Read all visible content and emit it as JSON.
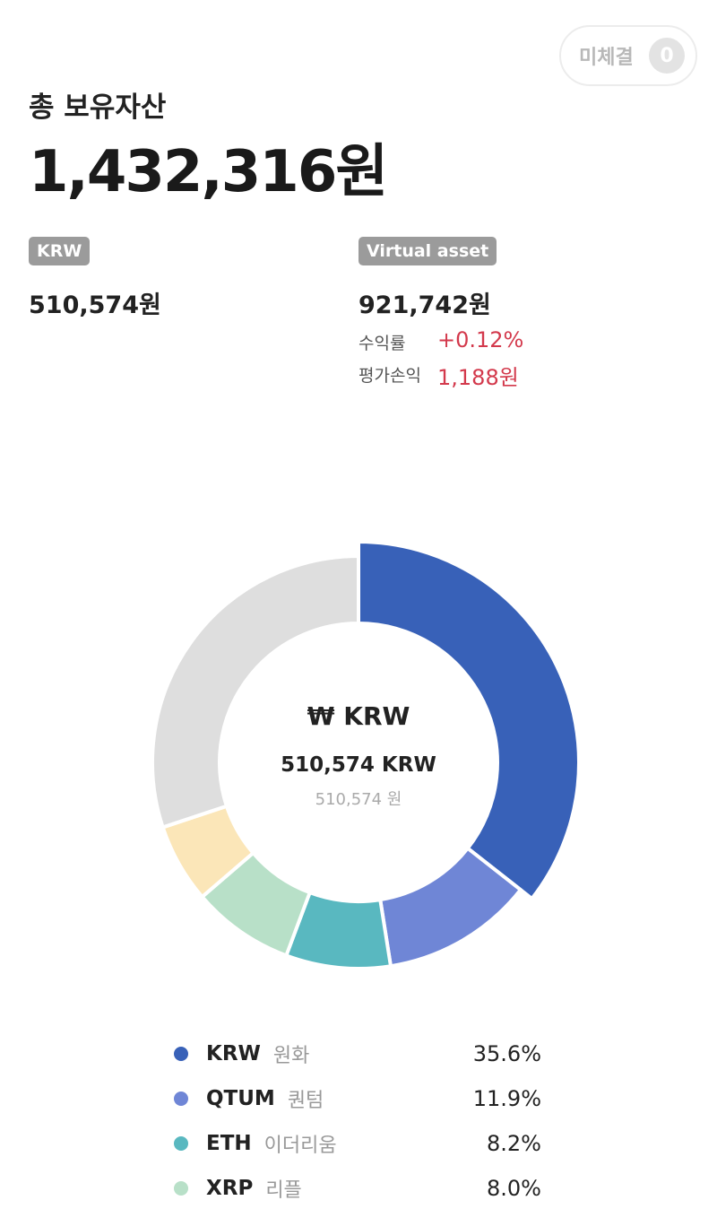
{
  "header": {
    "pending_label": "미체결",
    "pending_count": "0"
  },
  "summary": {
    "title": "총 보유자산",
    "total": "1,432,316원",
    "krw_badge": "KRW",
    "krw_value": "510,574원",
    "virtual_badge": "Virtual asset",
    "virtual_value": "921,742원",
    "return_label": "수익률",
    "return_value": "+0.12%",
    "pl_label": "평가손익",
    "pl_value": "1,188원"
  },
  "colors": {
    "positive": "#d3394c",
    "badge": "#9b9b9b"
  },
  "donut": {
    "center_title": "₩ KRW",
    "center_amount": "510,574 KRW",
    "center_won": "510,574 원",
    "selected_index": 0,
    "segments": [
      {
        "code": "KRW",
        "name": "원화",
        "percent": 35.6,
        "label": "35.6%",
        "color": "#3861b8"
      },
      {
        "code": "QTUM",
        "name": "퀀텀",
        "percent": 11.9,
        "label": "11.9%",
        "color": "#6f86d6"
      },
      {
        "code": "ETH",
        "name": "이더리움",
        "percent": 8.2,
        "label": "8.2%",
        "color": "#59b8c0"
      },
      {
        "code": "XRP",
        "name": "리플",
        "percent": 8.0,
        "label": "8.0%",
        "color": "#b8e0c8"
      },
      {
        "code": "",
        "name": "",
        "percent": 6.2,
        "label": "",
        "color": "#fbe6b8"
      },
      {
        "code": "",
        "name": "",
        "percent": 30.1,
        "label": "",
        "color": "#dedede"
      }
    ]
  }
}
